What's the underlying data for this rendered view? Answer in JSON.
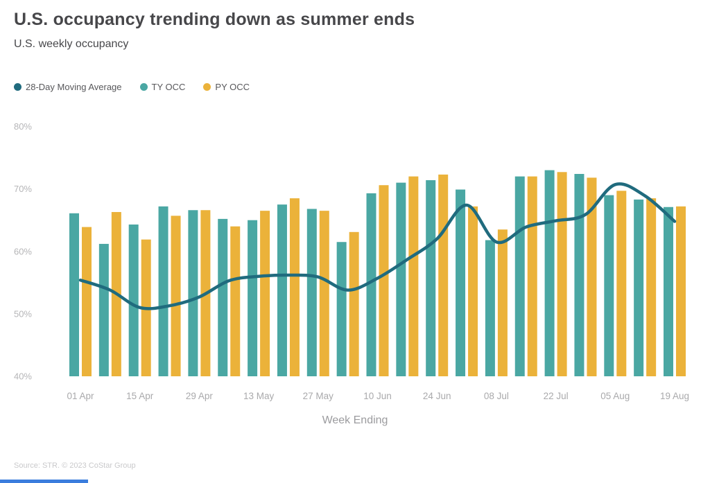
{
  "title": "U.S. occupancy trending down as summer ends",
  "subtitle": "U.S. weekly occupancy",
  "legend": [
    {
      "label": "28-Day Moving Average",
      "color": "#206b7e",
      "series": "ma"
    },
    {
      "label": "TY OCC",
      "color": "#4aa7a3",
      "series": "ty"
    },
    {
      "label": "PY OCC",
      "color": "#ebb23a",
      "series": "py"
    }
  ],
  "footer": "Source: STR. © 2023 CoStar Group",
  "chart_data": {
    "type": "bar",
    "subtype": "grouped bars with moving-average line overlay",
    "title": "U.S. occupancy trending down as summer ends",
    "subtitle": "U.S. weekly occupancy",
    "xlabel": "Week Ending",
    "ylabel": "",
    "ylim": [
      40,
      80
    ],
    "grid": false,
    "legend_position": "top-left",
    "y_tick_labels": [
      "80%",
      "70%",
      "60%",
      "50%",
      "40%"
    ],
    "y_tick_values": [
      80,
      70,
      60,
      50,
      40
    ],
    "n_weeks": 21,
    "x_tick_labels": [
      "01 Apr",
      "15 Apr",
      "29 Apr",
      "13 May",
      "27 May",
      "10 Jun",
      "24 Jun",
      "08 Jul",
      "22 Jul",
      "05 Aug",
      "19 Aug"
    ],
    "tick_week_indices": [
      0,
      2,
      4,
      6,
      8,
      10,
      12,
      14,
      16,
      18,
      20
    ],
    "series": [
      {
        "name": "TY OCC",
        "type": "bar",
        "color": "#4aa7a3",
        "values": [
          66.1,
          61.2,
          64.3,
          67.2,
          66.6,
          65.2,
          65.0,
          67.5,
          66.8,
          61.5,
          69.3,
          71.0,
          71.4,
          69.9,
          61.8,
          72.0,
          73.0,
          72.4,
          69.0,
          68.3,
          67.1
        ]
      },
      {
        "name": "PY OCC",
        "type": "bar",
        "color": "#ebb23a",
        "values": [
          63.9,
          66.3,
          61.9,
          65.7,
          66.6,
          64.0,
          66.5,
          68.5,
          66.5,
          63.1,
          70.6,
          72.0,
          72.3,
          67.2,
          63.5,
          72.0,
          72.7,
          71.8,
          69.7,
          68.5,
          67.2
        ]
      },
      {
        "name": "28-Day Moving Average",
        "type": "line",
        "color": "#206b7e",
        "values": [
          55.4,
          53.8,
          51.0,
          51.3,
          52.7,
          55.3,
          56.0,
          56.2,
          55.9,
          53.8,
          55.7,
          58.7,
          62.0,
          67.4,
          61.5,
          63.9,
          64.9,
          65.9,
          70.7,
          68.9,
          64.8
        ]
      }
    ]
  }
}
